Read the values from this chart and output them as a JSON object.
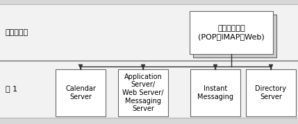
{
  "bg_color": "#d8d8d8",
  "band_color": "#e8e8e8",
  "inner_color": "#f2f2f2",
  "box_color": "#ffffff",
  "box_edge": "#666666",
  "text_color": "#000000",
  "arrow_color": "#333333",
  "label_user_layer": "ユーザー層",
  "label_layer1": "層 1",
  "client_label": "クライアント\n(POP、IMAP、Web)",
  "server_labels": [
    "Calendar\nServer",
    "Application\nServer/\nWeb Server/\nMessaging\nServer",
    "Instant\nMessaging",
    "Directory\nServer"
  ],
  "fig_w": 4.29,
  "fig_h": 1.79,
  "dpi": 100
}
